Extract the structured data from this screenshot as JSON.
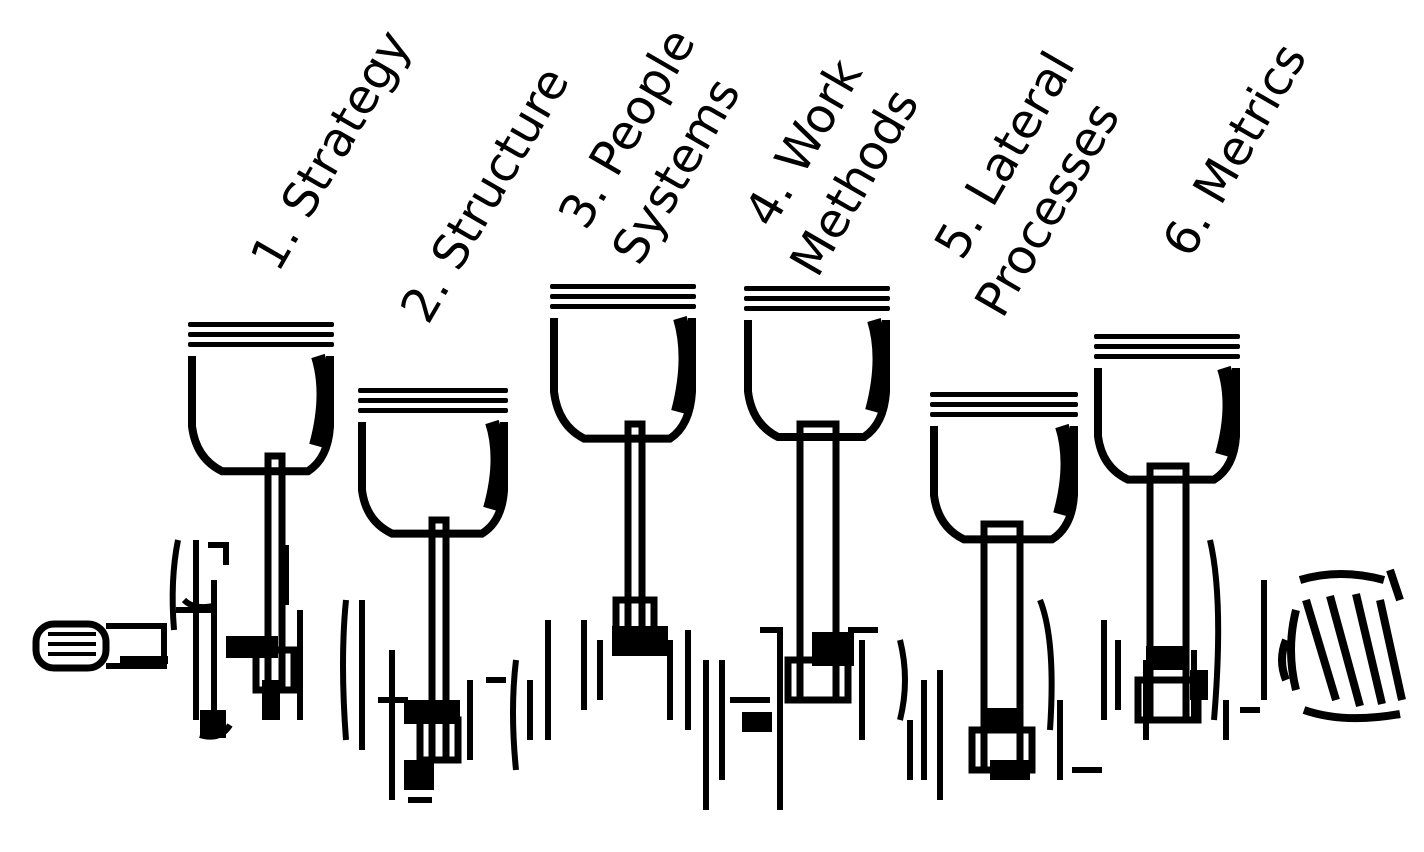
{
  "labels": [
    {
      "id": "strategy",
      "lines": [
        "1. Strategy"
      ]
    },
    {
      "id": "structure",
      "lines": [
        "2. Structure"
      ]
    },
    {
      "id": "people-systems",
      "lines": [
        "3. People",
        "Systems"
      ]
    },
    {
      "id": "work-methods",
      "lines": [
        "4. Work",
        "Methods"
      ]
    },
    {
      "id": "lateral-processes",
      "lines": [
        "5. Lateral",
        "Processes"
      ]
    },
    {
      "id": "metrics",
      "lines": [
        "6. Metrics"
      ]
    }
  ],
  "colors": {
    "ink": "#000000",
    "paper": "#ffffff"
  }
}
